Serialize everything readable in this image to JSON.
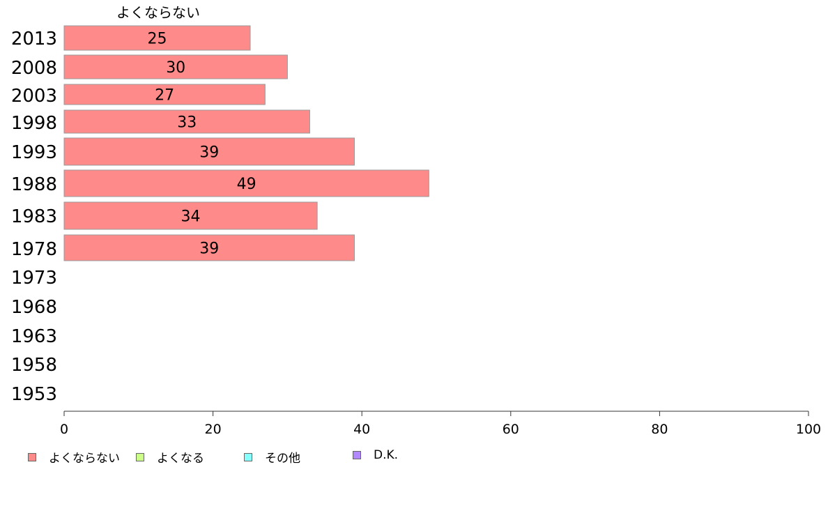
{
  "chart_data": {
    "type": "bar",
    "orientation": "horizontal",
    "stacked": true,
    "categories": [
      "2013",
      "2008",
      "2003",
      "1998",
      "1993",
      "1988",
      "1983",
      "1978",
      "1973",
      "1968",
      "1963",
      "1958",
      "1953"
    ],
    "series": [
      {
        "name": "よくならない",
        "color": "#ff8a8a",
        "values": [
          25,
          30,
          27,
          33,
          39,
          49,
          34,
          39,
          null,
          null,
          null,
          null,
          null
        ]
      },
      {
        "name": "よくなる",
        "color": "#ccff88",
        "values": [
          null,
          null,
          null,
          null,
          null,
          null,
          null,
          null,
          null,
          null,
          null,
          null,
          null
        ]
      },
      {
        "name": "その他",
        "color": "#88ffff",
        "values": [
          null,
          null,
          null,
          null,
          null,
          null,
          null,
          null,
          null,
          null,
          null,
          null,
          null
        ]
      },
      {
        "name": "D.K.",
        "color": "#b388ff",
        "values": [
          null,
          null,
          null,
          null,
          null,
          null,
          null,
          null,
          null,
          null,
          null,
          null,
          null
        ]
      }
    ],
    "data_labels": [
      "25",
      "30",
      "27",
      "33",
      "39",
      "49",
      "34",
      "39"
    ],
    "column_header": "よくならない",
    "xlim": [
      0,
      100
    ],
    "xticks": [
      "0",
      "20",
      "40",
      "60",
      "80",
      "100"
    ],
    "grid": false,
    "legend_position": "bottom-left"
  }
}
